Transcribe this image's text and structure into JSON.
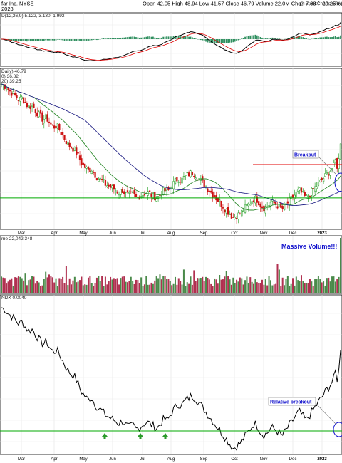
{
  "header": {
    "ticker_name": "far Inc.",
    "exchange": "NYSE",
    "date_frag": "2023",
    "open_label": "Open",
    "open": "42.05",
    "high_label": "High",
    "high": "48.94",
    "low_label": "Low",
    "low": "41.57",
    "close_label": "Close",
    "close": "46.79",
    "volume_label": "Volume",
    "volume": "22.0M",
    "chg_label": "Chg",
    "chg": "+7.88 (+20.25%)",
    "watermark": "@ StockCharts.com"
  },
  "macd_legend": {
    "text": "D(12,26,9) 5.122, 3.130, 1.992",
    "val1_color": "#d00000",
    "val2_color": "#1a8a1a"
  },
  "price_legend": {
    "line1": "Daily) 46.79",
    "line2": "0) 36.82",
    "line3": "20) 39.25"
  },
  "volume_legend": {
    "text": "me 22,042,348"
  },
  "rel_legend": {
    "text": "NDX 0.0040"
  },
  "annotations": {
    "breakout": "Breakout",
    "massive_volume": "Massive Volume!!!",
    "relative_breakout": "Relative breakout"
  },
  "colors": {
    "up": "#1a9a1a",
    "down": "#cc1010",
    "ma_fast": "#2e8b2e",
    "ma_slow": "#2a2a8a",
    "support": "#00aa00",
    "resistance": "#e00000",
    "annotation_blue": "#1010cc",
    "macd_hist": "#2f8f5f",
    "vol_up": "#4a8a4a",
    "vol_down": "#b03050"
  },
  "chart_data": [
    {
      "type": "line",
      "name": "MACD",
      "months": [
        "Mar",
        "Apr",
        "May",
        "Jun",
        "Jul",
        "Aug",
        "Sep",
        "Oct",
        "Nov",
        "Dec",
        "2023"
      ]
    },
    {
      "type": "candlestick",
      "name": "Price",
      "support_level": 33,
      "resistance_level": 41.5,
      "x_ticks": [
        "Mar",
        "Apr",
        "May",
        "Jun",
        "Jul",
        "Aug",
        "Sep",
        "Oct",
        "Nov",
        "Dec",
        "2023"
      ],
      "closes": [
        62,
        61.5,
        60.5,
        59.8,
        59,
        58,
        58.5,
        57,
        56.2,
        56.5,
        55,
        54,
        53,
        53.5,
        52,
        51,
        51.5,
        50,
        48.5,
        47,
        46,
        45.5,
        44,
        42,
        41,
        40,
        40.5,
        39,
        38,
        37.5,
        36.5,
        36,
        35.5,
        35,
        34.5,
        35,
        34,
        33.5,
        34,
        33,
        33.5,
        34,
        34.5,
        34,
        33.5,
        33,
        34,
        35,
        34.5,
        36,
        37,
        38,
        37.5,
        38.5,
        39,
        39.5,
        39,
        38,
        37,
        36,
        35,
        34,
        33,
        32,
        31,
        30,
        29,
        28,
        28.5,
        29,
        30,
        31,
        32,
        33,
        32.5,
        31,
        30.5,
        31,
        32,
        31.5,
        31,
        30,
        31,
        32,
        33,
        34,
        35,
        34,
        33,
        34,
        35,
        36,
        37,
        38,
        39,
        40,
        41,
        44,
        46.79
      ],
      "volume_max": 22.0
    },
    {
      "type": "bar",
      "name": "Volume",
      "series": [
        {
          "name": "me",
          "values": "per-day volume (M) derived from candles"
        }
      ]
    },
    {
      "type": "line",
      "name": "Relative Strength vs NDX",
      "last": 0.004
    }
  ]
}
